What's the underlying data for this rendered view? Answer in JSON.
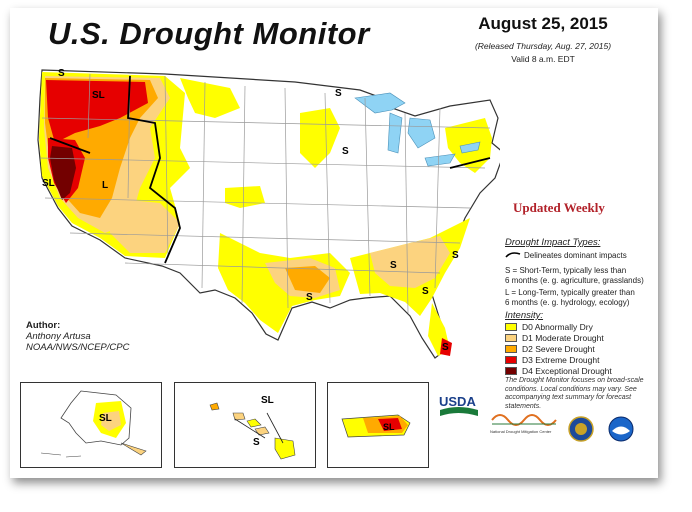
{
  "header": {
    "title": "U.S. Drought Monitor",
    "date": "August 25, 2015",
    "released": "(Released Thursday, Aug. 27, 2015)",
    "valid": "Valid 8 a.m. EDT"
  },
  "updated": "Updated Weekly",
  "impact": {
    "title": "Drought Impact Types:",
    "dominant": "Delineates dominant impacts",
    "short_term_1": "S = Short-Term, typically less than",
    "short_term_2": "6 months (e. g. agriculture, grasslands)",
    "long_term_1": "L = Long-Term, typically greater than",
    "long_term_2": "6 months (e. g. hydrology, ecology)"
  },
  "intensity": {
    "title": "Intensity:",
    "items": [
      {
        "label": "D0 Abnormally Dry",
        "color": "#ffff00"
      },
      {
        "label": "D1 Moderate Drought",
        "color": "#fcd37f"
      },
      {
        "label": "D2 Severe Drought",
        "color": "#ffaa00"
      },
      {
        "label": "D3 Extreme Drought",
        "color": "#e60000"
      },
      {
        "label": "D4 Exceptional Drought",
        "color": "#730000"
      }
    ]
  },
  "note": "The Drought Monitor focuses on broad-scale conditions. Local conditions may vary. See accompanying text summary for forecast statements.",
  "author": {
    "label": "Author:",
    "name": "Anthony Artusa",
    "org": "NOAA/NWS/NCEP/CPC"
  },
  "map_labels": {
    "sl": "SL",
    "s": "S",
    "l": "L"
  },
  "logos": {
    "usda": "USDA",
    "ndmc": "National Drought Mitigation Center"
  },
  "colors": {
    "water": "#8fd3f4",
    "border": "#333333",
    "state_line": "#9a9a9a"
  }
}
